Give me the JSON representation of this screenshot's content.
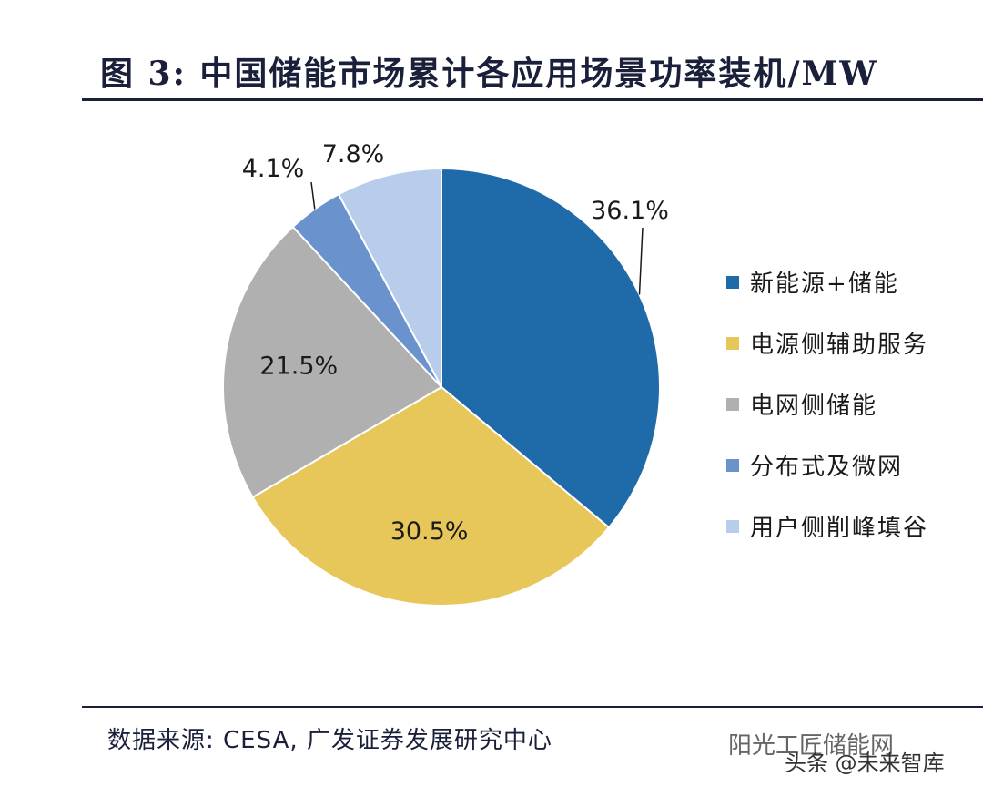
{
  "title": "图 3: 中国储能市场累计各应用场景功率装机/MW",
  "source": "数据来源: CESA, 广发证券发展研究中心",
  "watermark": "阳光工匠储能网",
  "watermark_sub": "头条 @未来智库",
  "chart_data": {
    "type": "pie",
    "title": "图 3: 中国储能市场累计各应用场景功率装机/MW",
    "legend_position": "right",
    "slices": [
      {
        "label": "新能源+储能",
        "value": 36.1,
        "display": "36.1%",
        "color": "#1f6aa8"
      },
      {
        "label": "电源侧辅助服务",
        "value": 30.5,
        "display": "30.5%",
        "color": "#e8c75a"
      },
      {
        "label": "电网侧储能",
        "value": 21.5,
        "display": "21.5%",
        "color": "#b0b0b0"
      },
      {
        "label": "分布式及微网",
        "value": 4.1,
        "display": "4.1%",
        "color": "#6a92cc"
      },
      {
        "label": "用户侧削峰填谷",
        "value": 7.8,
        "display": "7.8%",
        "color": "#b8cdec"
      }
    ]
  }
}
